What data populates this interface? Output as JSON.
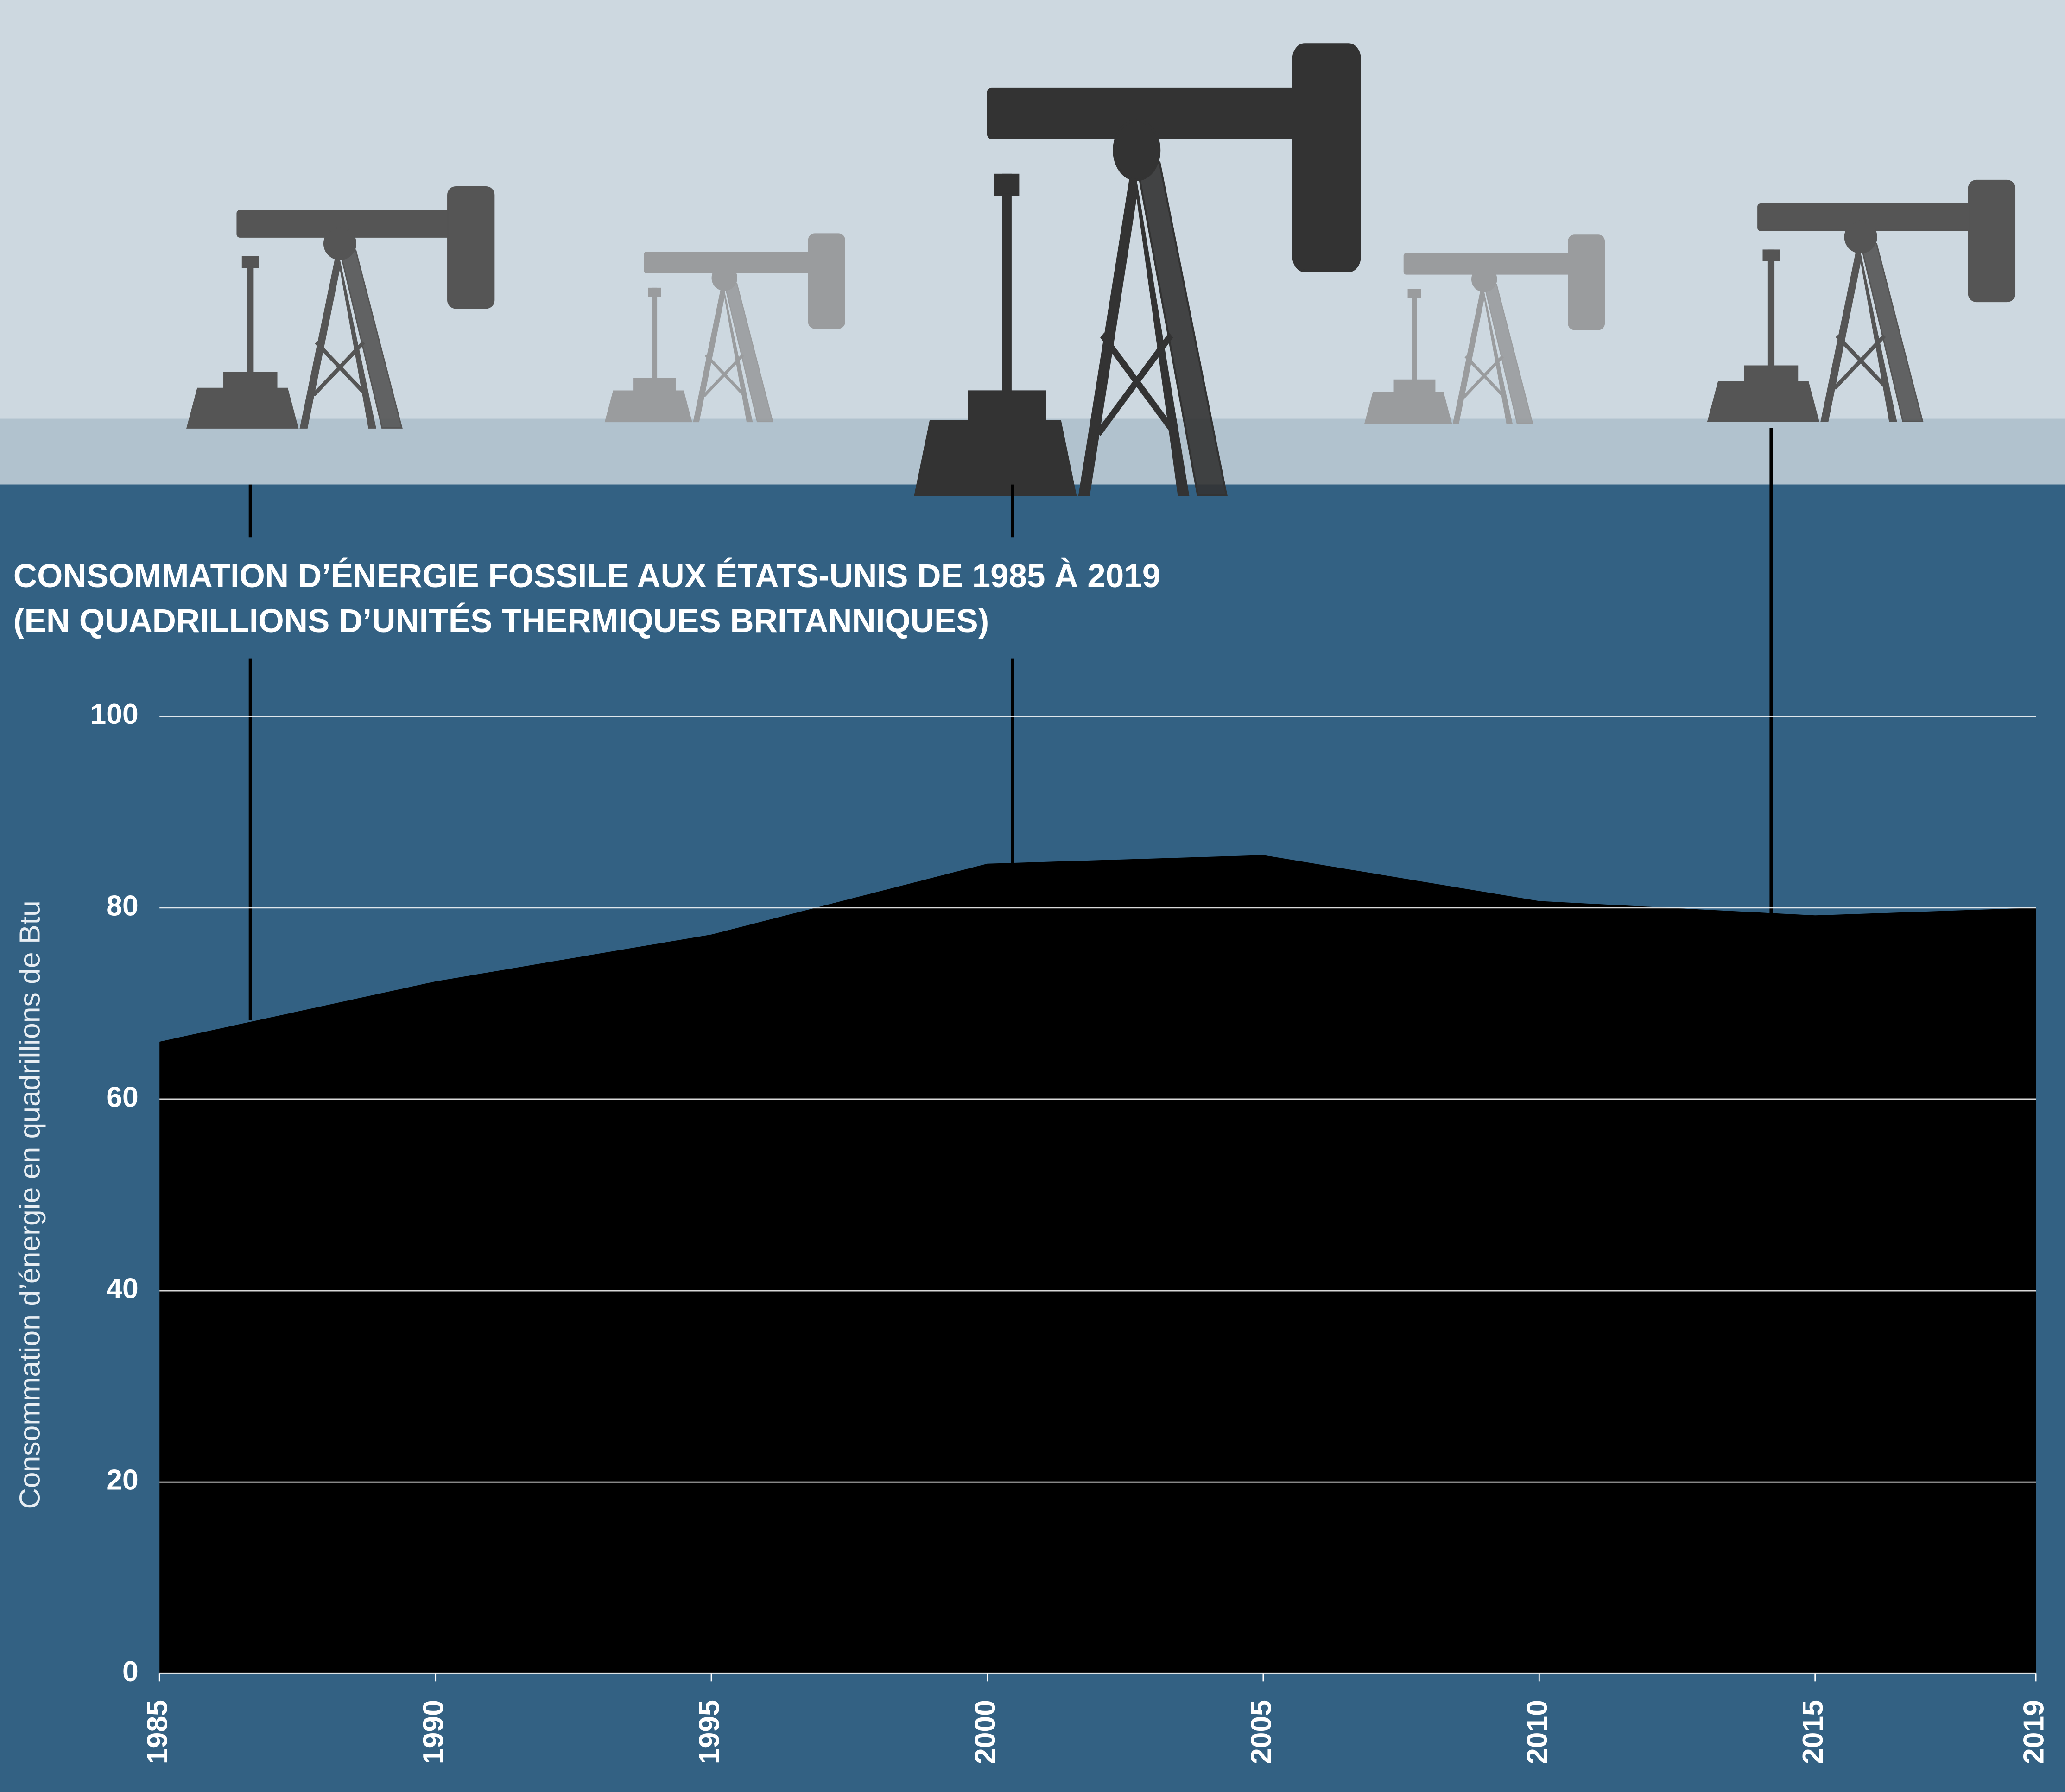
{
  "chart_data": {
    "type": "area",
    "title": "CONSOMMATION D’ÉNERGIE FOSSILE AUX ÉTATS-UNIS DE 1985 À 2019",
    "subtitle": "(EN QUADRILLIONS D’UNITÉS THERMIQUES BRITANNIQUES)",
    "y_label": "Consommation d’énergie en quadrillions de Btu",
    "x": [
      1985,
      1990,
      1995,
      2000,
      2005,
      2010,
      2015,
      2019
    ],
    "values": [
      66,
      72.3,
      77.2,
      84.6,
      85.5,
      80.7,
      79.2,
      80
    ],
    "color": "#000000",
    "xlim": [
      1985,
      2019
    ],
    "xticks": [
      1985,
      1990,
      1995,
      2000,
      2005,
      2010,
      2015,
      2019
    ],
    "ylim": [
      0,
      100
    ],
    "yticks": [
      0,
      20,
      40,
      60,
      80,
      100
    ],
    "grid": true
  }
}
